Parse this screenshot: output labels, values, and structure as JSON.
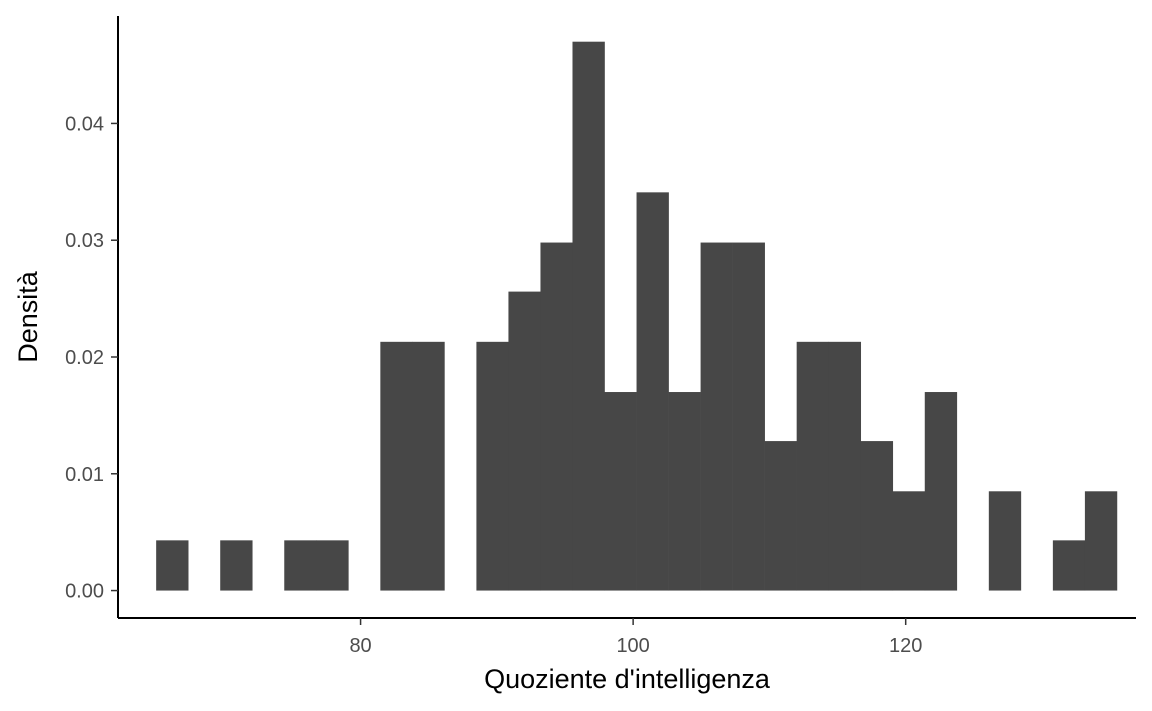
{
  "chart_data": {
    "type": "bar",
    "title": "",
    "xlabel": "Quoziente d'intelligenza",
    "ylabel": "Densità",
    "xlim": [
      62.2,
      136.9
    ],
    "ylim": [
      -0.00235,
      0.0492
    ],
    "x_ticks": [
      {
        "value": 80,
        "label": "80"
      },
      {
        "value": 100,
        "label": "100"
      },
      {
        "value": 120,
        "label": "120"
      }
    ],
    "y_ticks": [
      {
        "value": 0.0,
        "label": "0.00"
      },
      {
        "value": 0.01,
        "label": "0.01"
      },
      {
        "value": 0.02,
        "label": "0.02"
      },
      {
        "value": 0.03,
        "label": "0.03"
      },
      {
        "value": 0.04,
        "label": "0.04"
      }
    ],
    "bin_width": 2.35,
    "bins": [
      {
        "x0": 65.0,
        "x1": 67.35,
        "density": 0.0043
      },
      {
        "x0": 67.35,
        "x1": 69.7,
        "density": 0.0
      },
      {
        "x0": 69.7,
        "x1": 72.05,
        "density": 0.0043
      },
      {
        "x0": 72.05,
        "x1": 74.4,
        "density": 0.0
      },
      {
        "x0": 74.4,
        "x1": 76.75,
        "density": 0.0043
      },
      {
        "x0": 76.75,
        "x1": 79.1,
        "density": 0.0043
      },
      {
        "x0": 79.1,
        "x1": 81.45,
        "density": 0.0
      },
      {
        "x0": 81.45,
        "x1": 83.8,
        "density": 0.0213
      },
      {
        "x0": 83.8,
        "x1": 86.15,
        "density": 0.0213
      },
      {
        "x0": 86.15,
        "x1": 88.5,
        "density": 0.0
      },
      {
        "x0": 88.5,
        "x1": 90.85,
        "density": 0.0213
      },
      {
        "x0": 90.85,
        "x1": 93.2,
        "density": 0.0256
      },
      {
        "x0": 93.2,
        "x1": 95.55,
        "density": 0.0298
      },
      {
        "x0": 95.55,
        "x1": 97.9,
        "density": 0.047
      },
      {
        "x0": 97.9,
        "x1": 100.25,
        "density": 0.017
      },
      {
        "x0": 100.25,
        "x1": 102.6,
        "density": 0.0341
      },
      {
        "x0": 102.6,
        "x1": 104.95,
        "density": 0.017
      },
      {
        "x0": 104.95,
        "x1": 107.3,
        "density": 0.0298
      },
      {
        "x0": 107.3,
        "x1": 109.65,
        "density": 0.0298
      },
      {
        "x0": 109.65,
        "x1": 112.0,
        "density": 0.0128
      },
      {
        "x0": 112.0,
        "x1": 114.35,
        "density": 0.0213
      },
      {
        "x0": 114.35,
        "x1": 116.7,
        "density": 0.0213
      },
      {
        "x0": 116.7,
        "x1": 119.05,
        "density": 0.0128
      },
      {
        "x0": 119.05,
        "x1": 121.4,
        "density": 0.0085
      },
      {
        "x0": 121.4,
        "x1": 123.75,
        "density": 0.017
      },
      {
        "x0": 123.75,
        "x1": 126.1,
        "density": 0.0
      },
      {
        "x0": 126.1,
        "x1": 128.45,
        "density": 0.0085
      },
      {
        "x0": 128.45,
        "x1": 130.8,
        "density": 0.0
      },
      {
        "x0": 130.8,
        "x1": 133.15,
        "density": 0.0043
      },
      {
        "x0": 133.15,
        "x1": 135.5,
        "density": 0.0085
      }
    ],
    "colors": {
      "bar": "#474747",
      "axis_line": "#000000",
      "tick_label": "#4d4d4d",
      "axis_title": "#000000",
      "background": "#ffffff"
    },
    "grid": false,
    "legend": "none"
  }
}
